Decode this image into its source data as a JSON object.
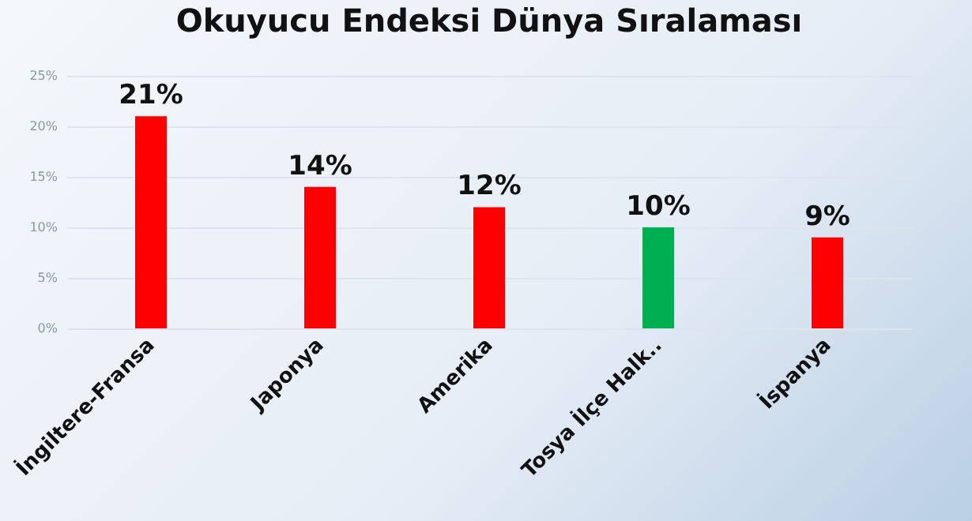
{
  "chart_data": {
    "type": "bar",
    "title": "Okuyucu Endeksi Dünya Sıralaması",
    "categories": [
      "İngiltere-Fransa",
      "Japonya",
      "Amerika",
      "Tosya İlçe Halk..",
      "İspanya"
    ],
    "values": [
      21,
      14,
      12,
      10,
      9
    ],
    "colors": [
      "#ff0000",
      "#ff0000",
      "#ff0000",
      "#00b050",
      "#ff0000"
    ],
    "value_labels": [
      "21%",
      "14%",
      "12%",
      "10%",
      "9%"
    ],
    "ylim": [
      0,
      25
    ],
    "yticks": [
      {
        "value": 0,
        "label": "0%"
      },
      {
        "value": 5,
        "label": "5%"
      },
      {
        "value": 10,
        "label": "10%"
      },
      {
        "value": 15,
        "label": "15%"
      },
      {
        "value": 20,
        "label": "20%"
      },
      {
        "value": 25,
        "label": "25%"
      }
    ],
    "grid": "y"
  }
}
